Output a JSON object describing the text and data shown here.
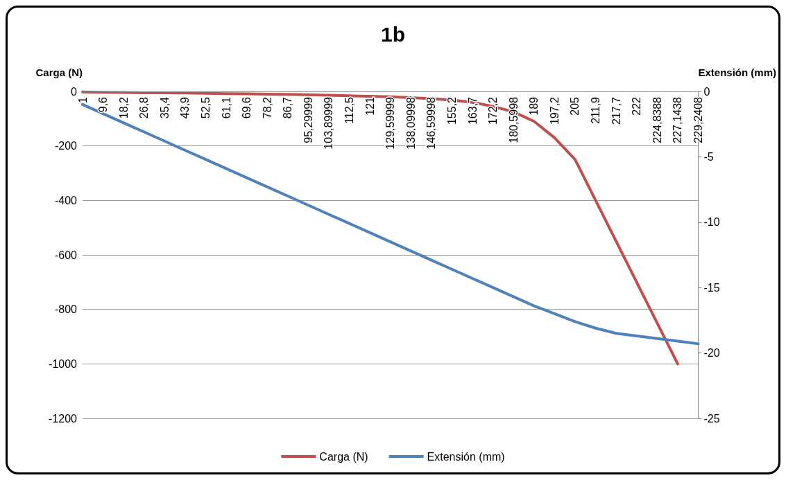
{
  "chart_data": {
    "type": "line",
    "title": "1b",
    "ylabel": "Carga (N)",
    "y2label": "Extensión (mm)",
    "categories": [
      "1",
      "9,6",
      "18,2",
      "26,8",
      "35,4",
      "43,9",
      "52,5",
      "61,1",
      "69,6",
      "78,2",
      "86,7",
      "95,29999",
      "103,89999",
      "112,5",
      "121",
      "129,59999",
      "138,09998",
      "146,59998",
      "155,2",
      "163,7",
      "172,2",
      "180,5998",
      "189",
      "197,2",
      "205",
      "211,9",
      "217,7",
      "222",
      "224,8388",
      "227,1438",
      "229,2408"
    ],
    "series": [
      {
        "name": "Carga (N)",
        "color": "#c0504d",
        "values": [
          -2,
          -3,
          -4,
          -5,
          -5,
          -6,
          -7,
          -8,
          -9,
          -10,
          -11,
          -12,
          -14,
          -16,
          -18,
          -20,
          -23,
          -27,
          -32,
          -40,
          -55,
          -75,
          -110,
          -170,
          -250,
          -400,
          -550,
          -700,
          -850,
          -1000,
          null
        ]
      },
      {
        "name": "Extensión (mm)",
        "color": "#4f81bd",
        "axis": "y2",
        "values": [
          -1.0,
          -1.7,
          -2.4,
          -3.1,
          -3.8,
          -4.5,
          -5.2,
          -5.9,
          -6.6,
          -7.3,
          -8.0,
          -8.7,
          -9.4,
          -10.1,
          -10.8,
          -11.5,
          -12.2,
          -12.9,
          -13.6,
          -14.3,
          -15.0,
          -15.7,
          -16.4,
          -17.0,
          -17.6,
          -18.1,
          -18.5,
          -18.7,
          -18.9,
          -19.1,
          -19.3
        ]
      }
    ],
    "ylim": [
      -1200,
      0
    ],
    "yticks": [
      -1200,
      -1000,
      -800,
      -600,
      -400,
      -200,
      0
    ],
    "y2lim": [
      -25,
      0
    ],
    "y2ticks": [
      -25,
      -20,
      -15,
      -10,
      -5,
      0
    ],
    "grid": "y",
    "legend": "bottom",
    "marker": "none",
    "line_style": "solid"
  }
}
